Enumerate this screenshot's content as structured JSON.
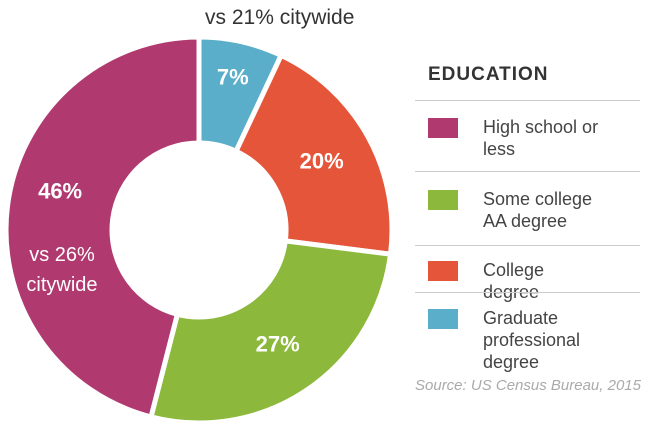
{
  "chart_data": {
    "type": "donut",
    "categories": [
      "High school or less",
      "Some college AA degree",
      "College degree",
      "Graduate professional degree"
    ],
    "values": [
      46,
      27,
      20,
      7
    ],
    "value_labels": [
      "46%",
      "27%",
      "20%",
      "7%"
    ],
    "colors": [
      "#b03a6f",
      "#8cb83c",
      "#e4553a",
      "#5aaec9"
    ],
    "annotations": [
      "vs 21% citywide",
      "vs 26% citywide"
    ],
    "legend_title": "EDUCATION",
    "source": "Source: US Census Bureau, 2015"
  }
}
